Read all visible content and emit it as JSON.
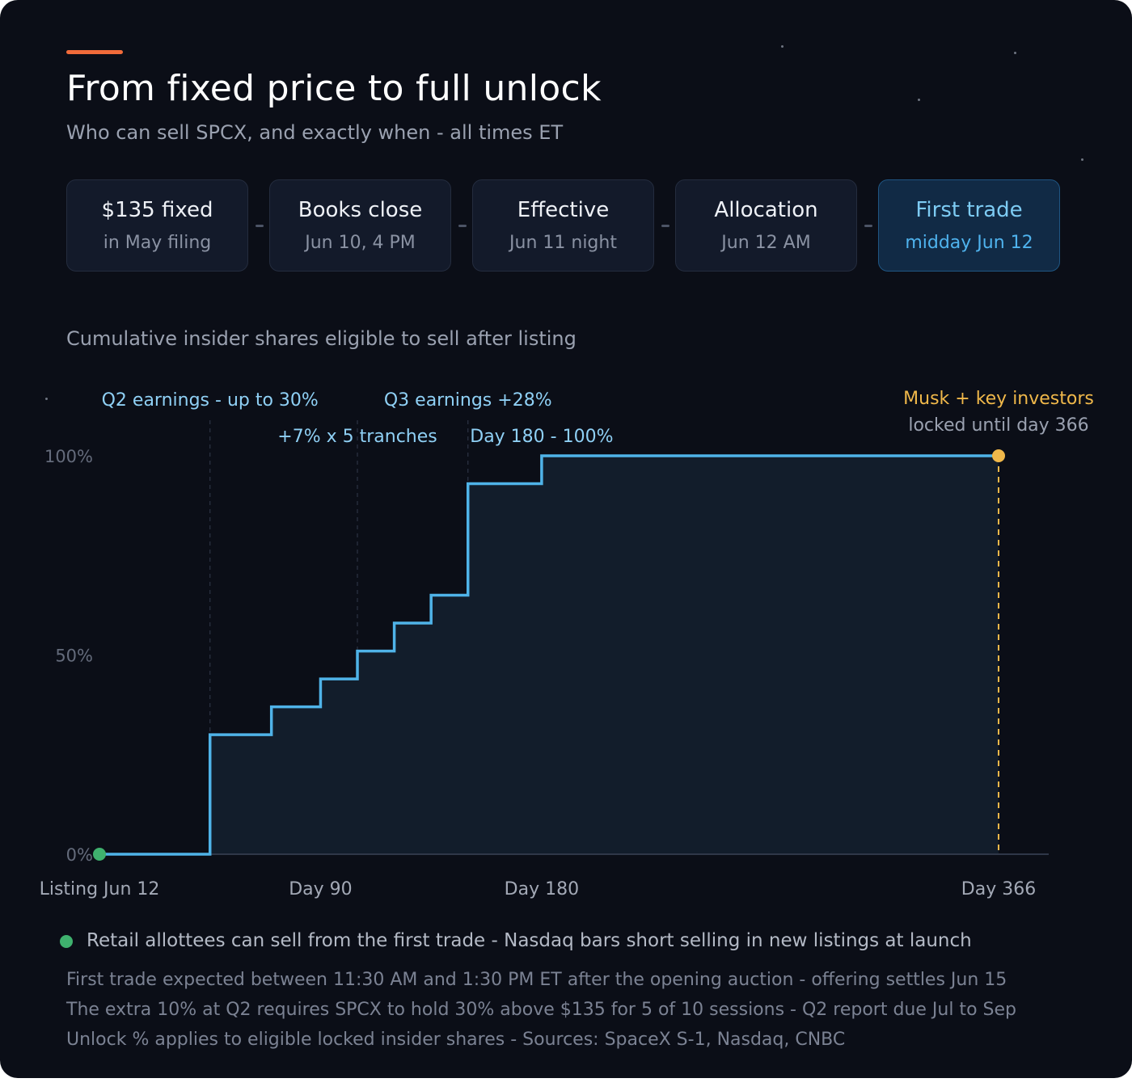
{
  "header": {
    "title": "From fixed price to full unlock",
    "subtitle": "Who can sell SPCX, and exactly when - all times ET"
  },
  "timeline": [
    {
      "title": "$135 fixed",
      "sub": "in May filing"
    },
    {
      "title": "Books close",
      "sub": "Jun 10, 4 PM"
    },
    {
      "title": "Effective",
      "sub": "Jun 11 night"
    },
    {
      "title": "Allocation",
      "sub": "Jun 12 AM"
    },
    {
      "title": "First trade",
      "sub": "midday Jun 12",
      "highlight": true
    }
  ],
  "chart_caption": "Cumulative insider shares eligible to sell after listing",
  "chart_data": {
    "type": "line",
    "step": true,
    "x": [
      0,
      45,
      70,
      90,
      105,
      120,
      135,
      150,
      180,
      366
    ],
    "y": [
      0,
      30,
      37,
      44,
      51,
      58,
      65,
      93,
      100,
      100
    ],
    "xlim": [
      0,
      366
    ],
    "ylim": [
      0,
      100
    ],
    "xticks": [
      {
        "value": 0,
        "label": "Listing Jun 12"
      },
      {
        "value": 90,
        "label": "Day 90"
      },
      {
        "value": 180,
        "label": "Day 180"
      },
      {
        "value": 366,
        "label": "Day 366"
      }
    ],
    "yticks": [
      {
        "value": 0,
        "label": "0%"
      },
      {
        "value": 50,
        "label": "50%"
      },
      {
        "value": 100,
        "label": "100%"
      }
    ],
    "event_lines": [
      45,
      105,
      150
    ],
    "annotations": [
      {
        "text": "Q2 earnings - up to 30%",
        "x": 45,
        "row": 1
      },
      {
        "text": "+7% x 5 tranches",
        "x": 105,
        "row": 2
      },
      {
        "text": "Q3 earnings +28%",
        "x": 150,
        "row": 1
      },
      {
        "text": "Day 180 - 100%",
        "x": 180,
        "row": 2
      }
    ],
    "lockup": {
      "x": 366,
      "title": "Musk + key investors",
      "sub": "locked until day 366"
    },
    "colors": {
      "line": "#4fb3e8",
      "fill": "#121d2b",
      "start": "#3fb16e",
      "lockup": "#f0b84a",
      "annotation": "#8fd0f5"
    }
  },
  "legend": {
    "text": "Retail allottees can sell from the first trade - Nasdaq bars short selling in new listings at launch",
    "color": "#3fb16e"
  },
  "notes": [
    "First trade expected between 11:30 AM and 1:30 PM ET after the opening auction - offering settles Jun 15",
    "The extra 10% at Q2 requires SPCX to hold 30% above $135 for 5 of 10 sessions - Q2 report due Jul to Sep",
    "Unlock % applies to eligible locked insider shares - Sources: SpaceX S-1, Nasdaq, CNBC"
  ]
}
